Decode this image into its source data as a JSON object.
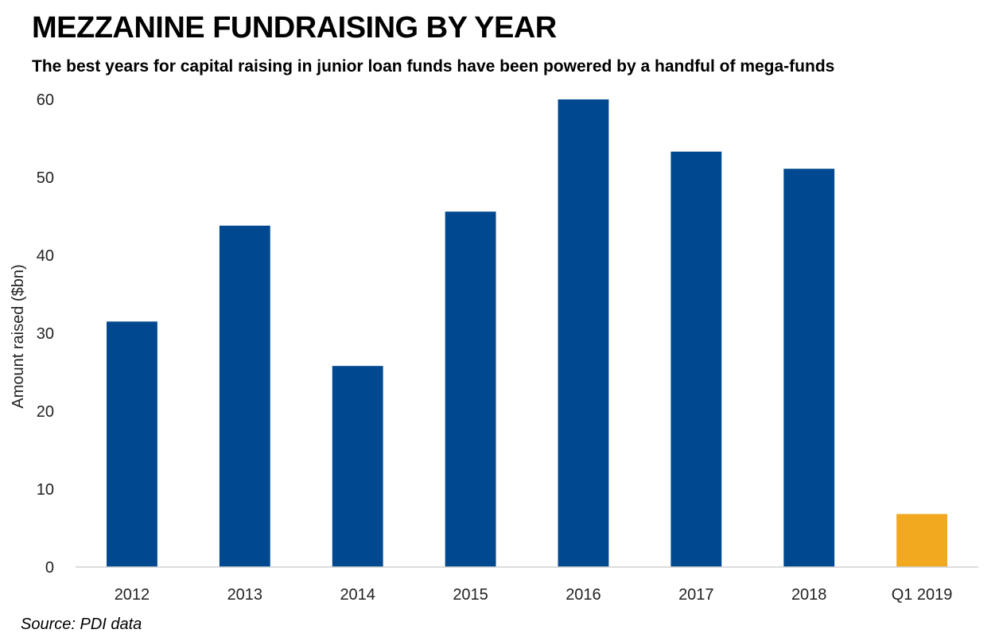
{
  "chart_data": {
    "type": "bar",
    "title": "MEZZANINE FUNDRAISING BY YEAR",
    "subtitle": "The best years for capital raising in junior loan funds have been powered by a handful of mega-funds",
    "xlabel": "",
    "ylabel": "Amount raised ($bn)",
    "categories": [
      "2012",
      "2013",
      "2014",
      "2015",
      "2016",
      "2017",
      "2018",
      "Q1 2019"
    ],
    "values": [
      31.5,
      43.8,
      25.8,
      45.6,
      60.0,
      53.3,
      51.1,
      6.8
    ],
    "bar_colors": [
      "#004990",
      "#004990",
      "#004990",
      "#004990",
      "#004990",
      "#004990",
      "#004990",
      "#F2A91F"
    ],
    "ylim": [
      0,
      60
    ],
    "yticks": [
      0,
      10,
      20,
      30,
      40,
      50,
      60
    ],
    "grid": false,
    "legend": "none",
    "source": "Source: PDI data"
  }
}
